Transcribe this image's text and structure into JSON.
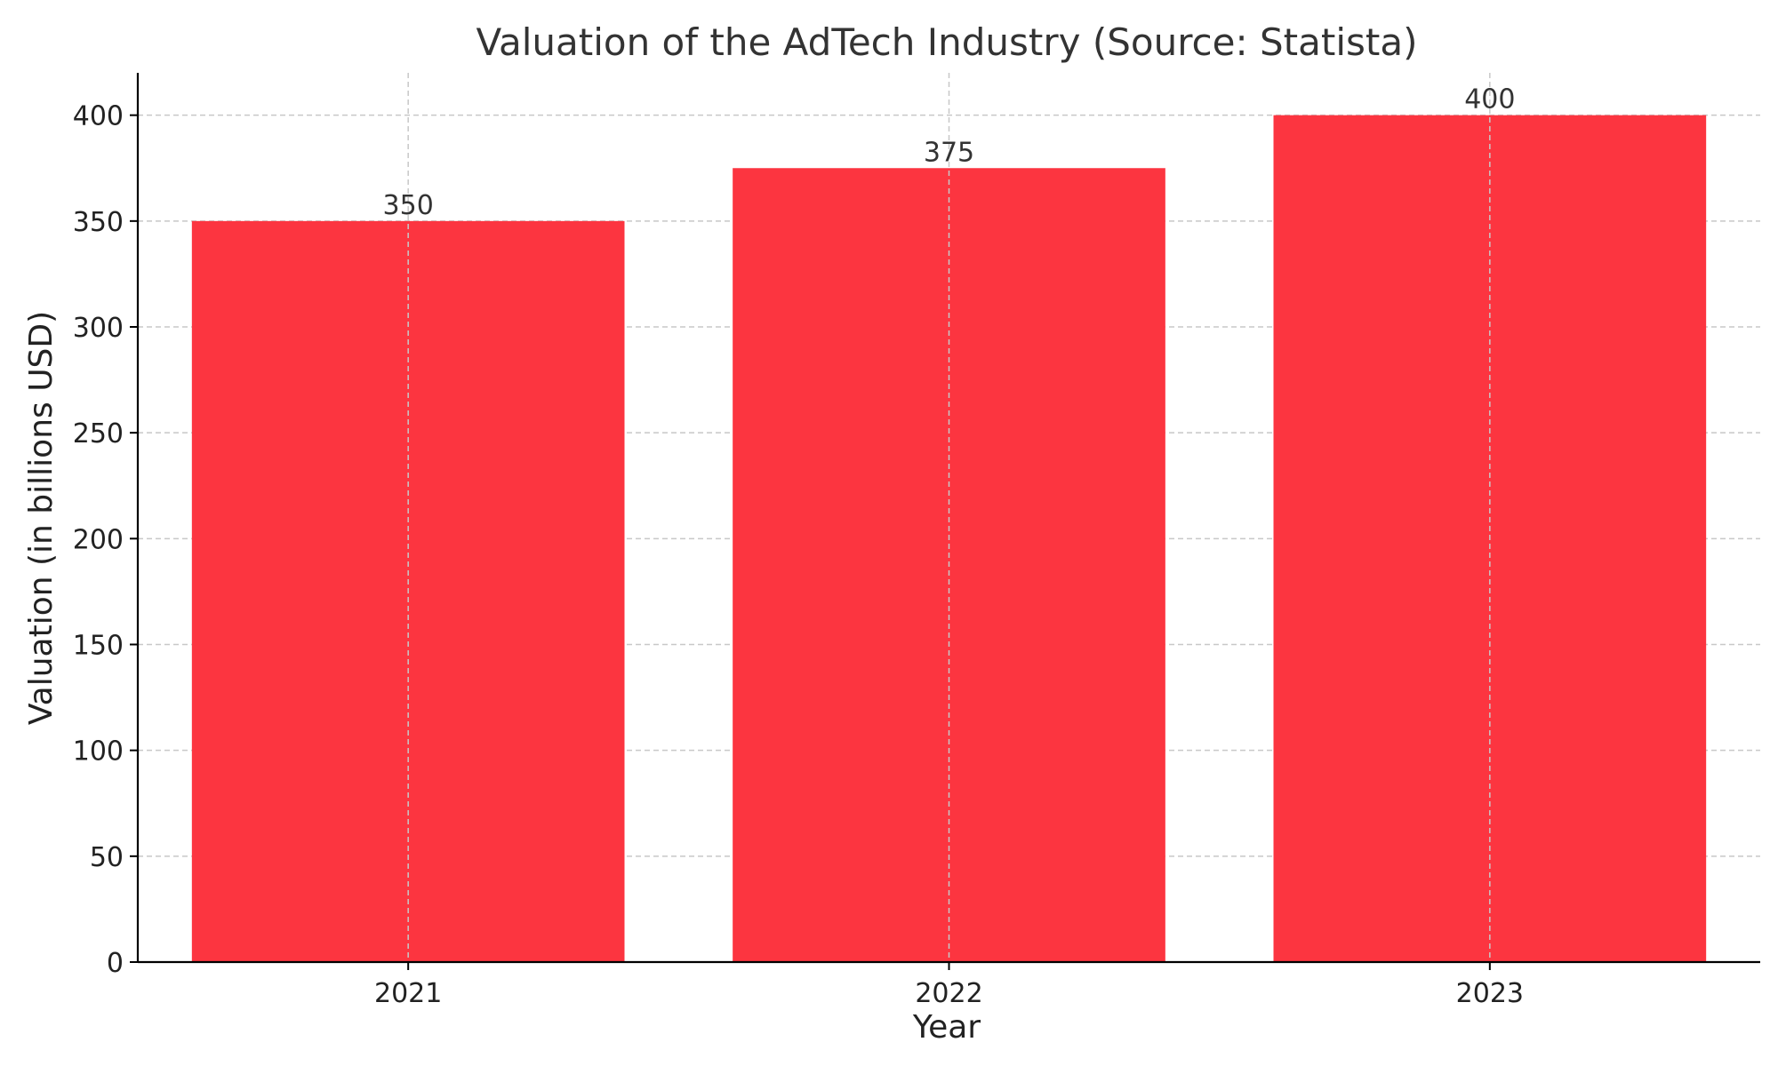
{
  "chart_data": {
    "type": "bar",
    "title": "Valuation of the AdTech Industry (Source: Statista)",
    "xlabel": "Year",
    "ylabel": "Valuation (in billions USD)",
    "categories": [
      "2021",
      "2022",
      "2023"
    ],
    "values": [
      350,
      375,
      400
    ],
    "data_labels": [
      "350",
      "375",
      "400"
    ],
    "y_ticks": [
      0,
      50,
      100,
      150,
      200,
      250,
      300,
      350,
      400
    ],
    "ylim": [
      0,
      420
    ],
    "grid": true,
    "legend": "none",
    "colors": {
      "bar": "#fc3540",
      "axis": "#000000",
      "grid": "#c8c8c8"
    }
  }
}
